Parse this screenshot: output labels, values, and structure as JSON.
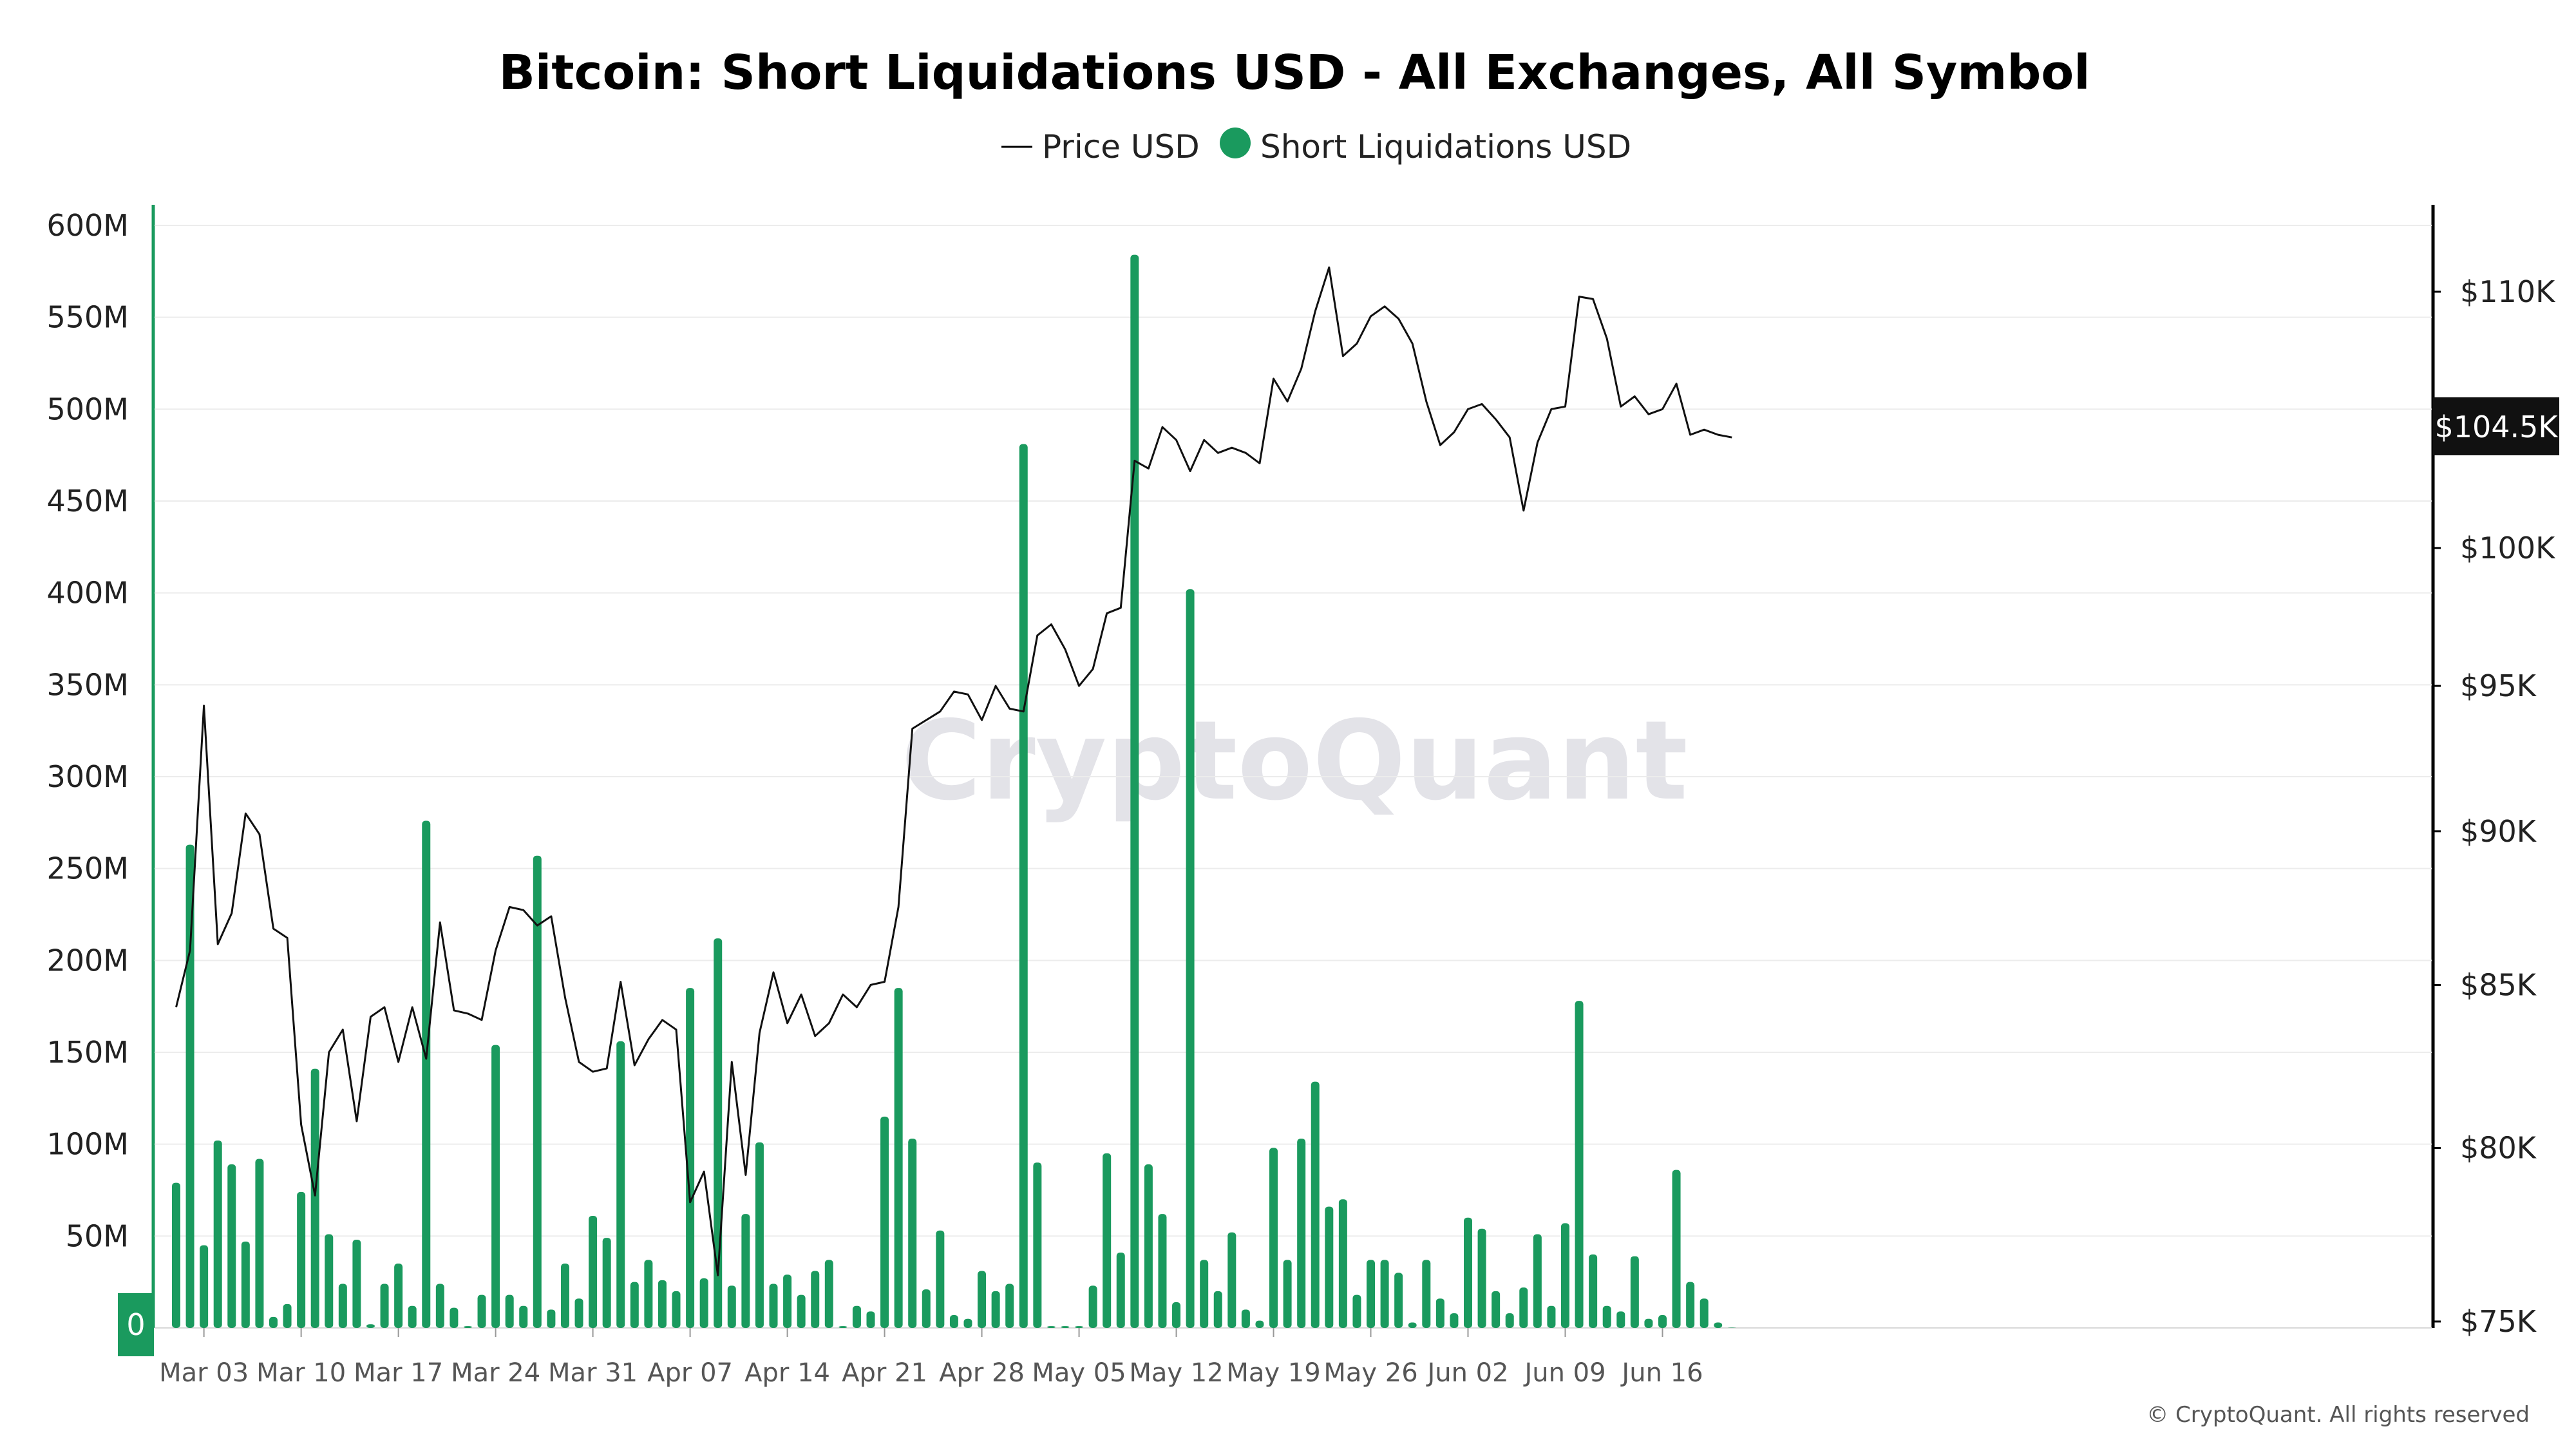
{
  "chart_data": {
    "type": "bar",
    "title": "Bitcoin: Short Liquidations USD - All Exchanges, All Symbol",
    "legend": [
      {
        "name": "Price USD",
        "marker": "line",
        "color": "#000000"
      },
      {
        "name": "Short Liquidations USD",
        "marker": "dot",
        "color": "#1a9a5e"
      }
    ],
    "x_start": "2025-03-01",
    "x_end": "2025-06-20",
    "x_ticks": [
      "Mar 03",
      "Mar 10",
      "Mar 17",
      "Mar 24",
      "Mar 31",
      "Apr 07",
      "Apr 14",
      "Apr 21",
      "Apr 28",
      "May 05",
      "May 12",
      "May 19",
      "May 26",
      "Jun 02",
      "Jun 09",
      "Jun 16"
    ],
    "y_left": {
      "label": "",
      "ticks": [
        "0",
        "50M",
        "100M",
        "150M",
        "200M",
        "250M",
        "300M",
        "350M",
        "400M",
        "450M",
        "500M",
        "550M",
        "600M"
      ],
      "range": [
        0,
        600
      ]
    },
    "y_right": {
      "label": "",
      "ticks": [
        "$75K",
        "$80K",
        "$85K",
        "$90K",
        "$95K",
        "$100K",
        "$110K"
      ],
      "scale": "log"
    },
    "current_price_label": "$104.5K",
    "left_zero_badge": "0",
    "watermark": "CryptoQuant",
    "credit": "© CryptoQuant. All rights reserved",
    "series": [
      {
        "name": "Short Liquidations USD",
        "type": "bar",
        "color": "#1a9a5e",
        "unit": "M USD",
        "values": [
          79,
          263,
          45,
          102,
          89,
          47,
          92,
          6,
          13,
          74,
          141,
          51,
          24,
          48,
          2,
          24,
          35,
          12,
          276,
          24,
          11,
          1,
          18,
          154,
          18,
          12,
          257,
          10,
          35,
          16,
          61,
          49,
          156,
          25,
          37,
          26,
          20,
          185,
          27,
          212,
          23,
          62,
          101,
          24,
          29,
          18,
          31,
          37,
          1,
          12,
          9,
          115,
          185,
          103,
          21,
          53,
          7,
          5,
          31,
          20,
          24,
          481,
          90,
          1,
          1,
          1,
          23,
          95,
          41,
          584,
          89,
          62,
          14,
          402,
          37,
          20,
          52,
          10,
          4,
          98,
          37,
          103,
          134,
          66,
          70,
          18,
          37,
          37,
          30,
          3,
          37,
          16,
          8,
          60,
          54,
          20,
          8,
          22,
          51,
          12,
          57,
          178,
          40,
          12,
          9,
          39,
          5,
          7,
          86,
          25,
          16,
          3,
          0
        ]
      },
      {
        "name": "Price USD",
        "type": "line",
        "color": "#000000",
        "unit": "USD",
        "values": [
          84300,
          86100,
          94300,
          86300,
          87300,
          90600,
          89900,
          86800,
          86500,
          80700,
          78600,
          82900,
          83600,
          80800,
          84000,
          84300,
          82600,
          84300,
          82700,
          87000,
          84200,
          84100,
          83900,
          86100,
          87500,
          87400,
          86900,
          87200,
          84600,
          82600,
          82300,
          82400,
          85100,
          82500,
          83300,
          83900,
          83600,
          78400,
          79300,
          76300,
          82600,
          79200,
          83500,
          85400,
          83800,
          84700,
          83400,
          83800,
          84700,
          84300,
          85000,
          85100,
          87500,
          93500,
          93800,
          94100,
          94800,
          94700,
          93800,
          95000,
          94200,
          94100,
          96800,
          97200,
          96300,
          95000,
          95600,
          97600,
          97800,
          103300,
          103000,
          104600,
          104100,
          102900,
          104100,
          103600,
          103800,
          103600,
          103200,
          106500,
          105600,
          106900,
          109200,
          111000,
          107400,
          107900,
          109000,
          109400,
          108900,
          107900,
          105600,
          103900,
          104400,
          105300,
          105500,
          104900,
          104200,
          101400,
          104000,
          105300,
          105400,
          109800,
          109700,
          108100,
          105400,
          105800,
          105100,
          105300,
          106300,
          104300,
          104500,
          104300,
          104200
        ]
      }
    ]
  }
}
